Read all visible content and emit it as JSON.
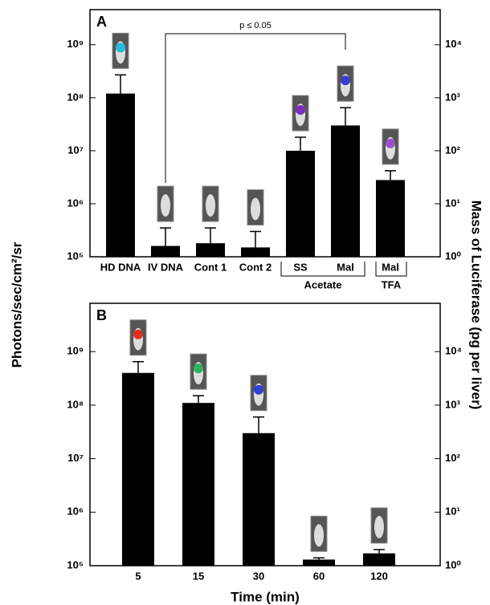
{
  "chart_data": [
    {
      "type": "bar",
      "panel": "A",
      "log_scale": true,
      "color": "#000000",
      "ylabel": "Photons/sec/cm²/sr",
      "y2label": "Mass of Luciferase (pg per liver)",
      "categories": [
        "HD DNA",
        "IV DNA",
        "Cont 1",
        "Cont 2",
        "SS",
        "Mal",
        "Mal"
      ],
      "values": [
        120000000,
        160000,
        180000,
        150000,
        10000000,
        30000000,
        2800000
      ],
      "errors": [
        150000000,
        190000,
        170000,
        150000,
        8000000,
        35000000,
        1400000
      ],
      "groups": [
        "Acetate",
        "TFA"
      ],
      "annotation": "p ≤ 0.05",
      "ylim": [
        100000,
        4600000000
      ],
      "yticks": [
        {
          "value": 100000,
          "label": "10⁵"
        },
        {
          "value": 1000000,
          "label": "10⁶"
        },
        {
          "value": 10000000,
          "label": "10⁷"
        },
        {
          "value": 100000000,
          "label": "10⁸"
        },
        {
          "value": 1000000000,
          "label": "10⁹"
        }
      ],
      "y2lim": [
        1,
        46000
      ],
      "y2ticks": [
        {
          "value": 1,
          "label": "10⁰"
        },
        {
          "value": 10,
          "label": "10¹"
        },
        {
          "value": 100,
          "label": "10²"
        },
        {
          "value": 1000,
          "label": "10³"
        },
        {
          "value": 10000,
          "label": "10⁴"
        }
      ]
    },
    {
      "type": "bar",
      "panel": "B",
      "log_scale": true,
      "color": "#000000",
      "xlabel": "Time (min)",
      "categories": [
        "5",
        "15",
        "30",
        "60",
        "120"
      ],
      "values": [
        400000000,
        110000000,
        30000000,
        130000,
        170000
      ],
      "errors": [
        250000000,
        40000000,
        30000000,
        10000,
        30000
      ],
      "ylim": [
        100000,
        8000000000
      ],
      "yticks": [
        {
          "value": 100000,
          "label": "10⁵"
        },
        {
          "value": 1000000,
          "label": "10⁶"
        },
        {
          "value": 10000000,
          "label": "10⁷"
        },
        {
          "value": 100000000,
          "label": "10⁸"
        },
        {
          "value": 1000000000,
          "label": "10⁹"
        }
      ],
      "y2lim": [
        1,
        80000
      ],
      "y2ticks": [
        {
          "value": 1,
          "label": "10⁰"
        },
        {
          "value": 10,
          "label": "10¹"
        },
        {
          "value": 100,
          "label": "10²"
        },
        {
          "value": 1000,
          "label": "10³"
        },
        {
          "value": 10000,
          "label": "10⁴"
        }
      ]
    }
  ]
}
